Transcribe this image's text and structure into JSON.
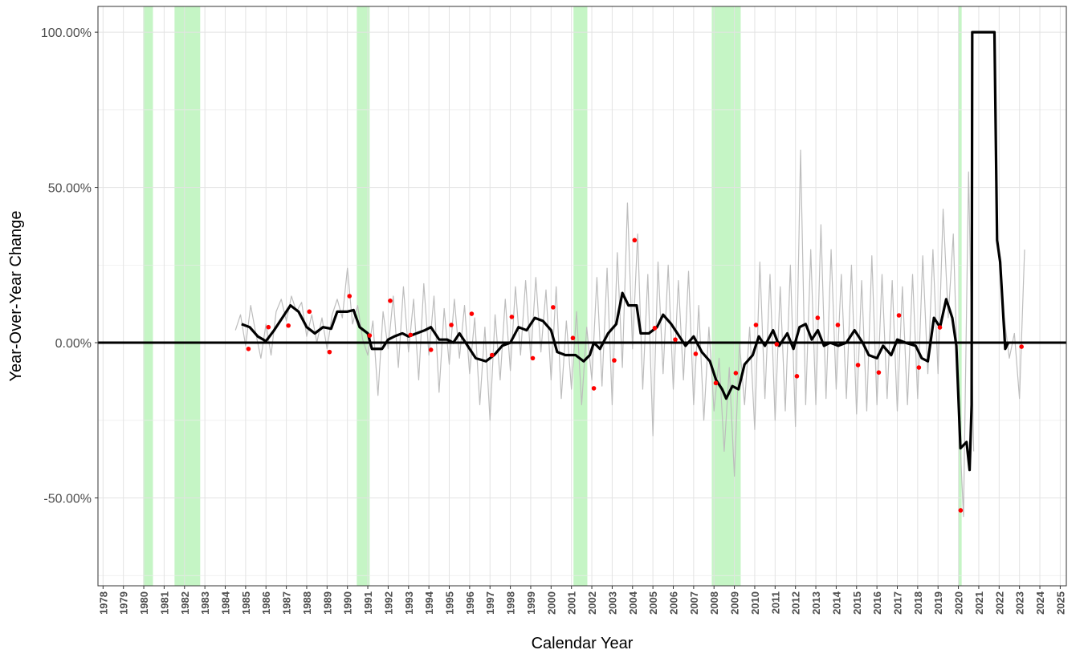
{
  "chart_data": {
    "type": "line",
    "x_label": "Calendar Year",
    "y_label": "Year-Over-Year Change",
    "xlim": [
      1977.75,
      2025.3
    ],
    "ylim": [
      -78.3,
      108.3
    ],
    "xticks": [
      1978,
      1979,
      1980,
      1981,
      1982,
      1983,
      1984,
      1985,
      1986,
      1987,
      1988,
      1989,
      1990,
      1991,
      1992,
      1993,
      1994,
      1995,
      1996,
      1997,
      1998,
      1999,
      2000,
      2001,
      2002,
      2003,
      2004,
      2005,
      2006,
      2007,
      2008,
      2009,
      2010,
      2011,
      2012,
      2013,
      2014,
      2015,
      2016,
      2017,
      2018,
      2019,
      2020,
      2021,
      2022,
      2023,
      2024,
      2025
    ],
    "yticks": [
      {
        "value": -50,
        "label": "-50.00%"
      },
      {
        "value": 0,
        "label": "0.00%"
      },
      {
        "value": 50,
        "label": "50.00%"
      },
      {
        "value": 100,
        "label": "100.00%"
      }
    ],
    "yminor": [
      -75,
      -25,
      25,
      75
    ],
    "grid": true,
    "reference_line": 0,
    "shade_color": "#c5f5c5",
    "shaded_regions": [
      [
        1979.97,
        1980.45
      ],
      [
        1981.51,
        1982.77
      ],
      [
        1990.46,
        1991.09
      ],
      [
        2001.1,
        2001.78
      ],
      [
        2007.89,
        2009.31
      ],
      [
        2020.0,
        2020.16
      ]
    ],
    "series": [
      {
        "type": "line",
        "color": "#bdbdbd",
        "width": 1.2,
        "x": [
          1984.5,
          1984.75,
          1985,
          1985.25,
          1985.5,
          1985.75,
          1986,
          1986.25,
          1986.5,
          1986.75,
          1987,
          1987.25,
          1987.5,
          1987.75,
          1988,
          1988.25,
          1988.5,
          1988.75,
          1989,
          1989.25,
          1989.5,
          1989.75,
          1990,
          1990.25,
          1990.5,
          1990.75,
          1991,
          1991.25,
          1991.5,
          1991.75,
          1992,
          1992.25,
          1992.5,
          1992.75,
          1993,
          1993.25,
          1993.5,
          1993.75,
          1994,
          1994.25,
          1994.5,
          1994.75,
          1995,
          1995.25,
          1995.5,
          1995.75,
          1996,
          1996.25,
          1996.5,
          1996.75,
          1997,
          1997.25,
          1997.5,
          1997.75,
          1998,
          1998.25,
          1998.5,
          1998.75,
          1999,
          1999.25,
          1999.5,
          1999.75,
          2000,
          2000.25,
          2000.5,
          2000.75,
          2001,
          2001.25,
          2001.5,
          2001.75,
          2002,
          2002.25,
          2002.5,
          2002.75,
          2003,
          2003.25,
          2003.5,
          2003.75,
          2004,
          2004.25,
          2004.5,
          2004.75,
          2005,
          2005.25,
          2005.5,
          2005.75,
          2006,
          2006.25,
          2006.5,
          2006.75,
          2007,
          2007.25,
          2007.5,
          2007.75,
          2008,
          2008.25,
          2008.5,
          2008.75,
          2009,
          2009.25,
          2009.5,
          2009.75,
          2010,
          2010.25,
          2010.5,
          2010.75,
          2011,
          2011.25,
          2011.5,
          2011.75,
          2012,
          2012.25,
          2012.5,
          2012.75,
          2013,
          2013.25,
          2013.5,
          2013.75,
          2014,
          2014.25,
          2014.5,
          2014.75,
          2015,
          2015.25,
          2015.5,
          2015.75,
          2016,
          2016.25,
          2016.5,
          2016.75,
          2017,
          2017.25,
          2017.5,
          2017.75,
          2018,
          2018.25,
          2018.5,
          2018.75,
          2019,
          2019.25,
          2019.5,
          2019.75,
          2020,
          2020.25,
          2020.5,
          2020.75,
          2021,
          2022.25,
          2022.5,
          2022.75,
          2023,
          2023.25
        ],
        "values": [
          4,
          9,
          -1,
          12,
          3,
          -5,
          6,
          -4,
          10,
          14,
          7,
          15,
          10,
          13,
          2,
          9,
          0,
          8,
          -2,
          9,
          14,
          8,
          24,
          6,
          12,
          1,
          -4,
          7,
          -17,
          10,
          -2,
          15,
          -8,
          18,
          -3,
          14,
          -12,
          19,
          -4,
          15,
          -16,
          11,
          -7,
          14,
          -5,
          12,
          -10,
          8,
          -20,
          5,
          -25,
          9,
          -12,
          14,
          -9,
          18,
          -4,
          20,
          -5,
          21,
          -3,
          17,
          -12,
          18,
          -18,
          7,
          -15,
          10,
          -20,
          5,
          -12,
          21,
          -14,
          24,
          -20,
          29,
          -8,
          45,
          -2,
          35,
          -15,
          22,
          -30,
          26,
          -10,
          25,
          -15,
          20,
          -12,
          23,
          -20,
          12,
          -25,
          5,
          -22,
          -5,
          -35,
          -8,
          -43,
          0,
          -20,
          5,
          -28,
          26,
          -18,
          22,
          -25,
          18,
          -22,
          25,
          -27,
          62,
          -20,
          30,
          -20,
          38,
          -18,
          30,
          -15,
          22,
          -18,
          25,
          -23,
          20,
          -22,
          28,
          -20,
          22,
          -18,
          20,
          -22,
          18,
          -20,
          22,
          -18,
          28,
          -10,
          30,
          -10,
          43,
          8,
          35,
          -20,
          -56,
          55,
          -35,
          null,
          8,
          -5,
          3,
          -18,
          30
        ]
      },
      {
        "type": "line",
        "color": "#000000",
        "width": 3.2,
        "x": [
          1984.8,
          1985.2,
          1985.6,
          1986,
          1986.4,
          1986.8,
          1987.2,
          1987.6,
          1988,
          1988.4,
          1988.8,
          1989.2,
          1989.5,
          1990,
          1990.3,
          1990.6,
          1991,
          1991.2,
          1991.7,
          1992,
          1992.3,
          1992.7,
          1993,
          1993.4,
          1993.8,
          1994.1,
          1994.5,
          1994.9,
          1995.2,
          1995.5,
          1995.9,
          1996.3,
          1996.8,
          1997.2,
          1997.6,
          1998,
          1998.4,
          1998.8,
          1999.2,
          1999.6,
          2000,
          2000.3,
          2000.7,
          2001.2,
          2001.6,
          2001.9,
          2002.1,
          2002.4,
          2002.8,
          2003.2,
          2003.5,
          2003.8,
          2004.2,
          2004.4,
          2004.8,
          2005.2,
          2005.5,
          2005.9,
          2006.2,
          2006.6,
          2007,
          2007.4,
          2007.8,
          2008.1,
          2008.4,
          2008.6,
          2008.9,
          2009.2,
          2009.5,
          2009.9,
          2010.2,
          2010.5,
          2010.9,
          2011.2,
          2011.6,
          2011.9,
          2012.2,
          2012.5,
          2012.8,
          2013.1,
          2013.4,
          2013.7,
          2014.1,
          2014.5,
          2014.9,
          2015.3,
          2015.6,
          2016,
          2016.3,
          2016.7,
          2017,
          2017.4,
          2017.9,
          2018.2,
          2018.5,
          2018.8,
          2019.1,
          2019.4,
          2019.7,
          2019.9,
          2020.1,
          2020.4,
          2020.55,
          2020.65,
          2020.68,
          2021.77,
          2021.9,
          2022.05,
          2022.3,
          2022.45
        ],
        "values": [
          6,
          5,
          2,
          0.5,
          4,
          8,
          12,
          10,
          5,
          3,
          5,
          4.5,
          10,
          10,
          10.5,
          5,
          3,
          -2,
          -2,
          1,
          2,
          3,
          2,
          3,
          4,
          5,
          1,
          1,
          0,
          3,
          -1,
          -5,
          -6,
          -4,
          -1,
          0,
          5,
          4,
          8,
          7,
          4,
          -3,
          -4,
          -4,
          -6,
          -4,
          0,
          -2,
          3,
          6,
          16,
          12,
          12,
          3,
          3,
          5,
          9,
          6,
          3,
          -1,
          2,
          -3,
          -6,
          -12,
          -15,
          -18,
          -14,
          -15,
          -7,
          -4,
          2,
          -1,
          4,
          -1,
          3,
          -2,
          5,
          6,
          1,
          4,
          -1,
          0,
          -1,
          0,
          4,
          0,
          -4,
          -5,
          -1,
          -4,
          1,
          0,
          -1,
          -5,
          -6,
          8,
          5,
          14,
          8,
          -1,
          -34,
          -32,
          -41,
          -20,
          100,
          100,
          33,
          26,
          -2,
          0
        ]
      },
      {
        "type": "scatter",
        "color": "#ff0000",
        "x": [
          1985.14,
          1986.12,
          1987.1,
          1988.13,
          1989.12,
          1990.1,
          1991.09,
          1992.1,
          1993.1,
          1994.1,
          1995.1,
          1996.1,
          1997.1,
          1998.07,
          1999.1,
          2000.1,
          2001.07,
          2002.1,
          2003.1,
          2004.1,
          2005.09,
          2006.1,
          2007.1,
          2008.09,
          2009.07,
          2010.06,
          2011.08,
          2012.07,
          2013.09,
          2014.08,
          2015.07,
          2016.09,
          2017.08,
          2018.06,
          2019.09,
          2020.11,
          2023.1
        ],
        "values": [
          -2,
          5,
          5.5,
          10,
          -3,
          15,
          2.3,
          13.5,
          2.5,
          -2.3,
          5.7,
          9.3,
          -4,
          8.3,
          -5,
          11.4,
          1.5,
          -14.7,
          -5.7,
          33,
          4.7,
          1,
          -3.6,
          -13,
          -9.8,
          5.7,
          -0.5,
          -10.8,
          8,
          5.7,
          -7.2,
          -9.6,
          8.8,
          -8,
          4.9,
          -54,
          -1.3
        ]
      }
    ]
  }
}
